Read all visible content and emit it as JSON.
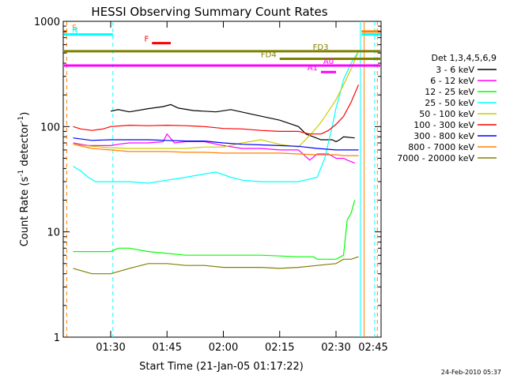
{
  "chart_data": {
    "type": "line",
    "title": "HESSI Observing Summary Count Rates",
    "xlabel": "Start Time (21-Jan-05 01:17:22)",
    "ylabel_pre": "Count Rate (s",
    "ylabel_exp": "-1",
    "ylabel_post": " detector",
    "ylabel_exp2": "-1",
    "ylabel_end": ")",
    "x_range_min": [
      77.37,
      162
    ],
    "ylim": [
      1,
      1000
    ],
    "yscale": "log",
    "x_ticks": [
      {
        "label": "01:30",
        "t": 90
      },
      {
        "label": "01:45",
        "t": 105
      },
      {
        "label": "02:00",
        "t": 120
      },
      {
        "label": "02:15",
        "t": 135
      },
      {
        "label": "02:30",
        "t": 150
      },
      {
        "label": "02:45",
        "t": 165
      }
    ],
    "y_ticks": [
      {
        "label": "1",
        "v": 1
      },
      {
        "label": "10",
        "v": 10
      },
      {
        "label": "100",
        "v": 100
      },
      {
        "label": "1000",
        "v": 1000
      }
    ],
    "legend_title": "Det 1,3,4,5,6,9",
    "legend_placement": "right",
    "series": [
      {
        "name": "3 - 6 keV",
        "color": "#000000",
        "x": [
          88,
          89,
          90,
          92,
          95,
          100,
          104,
          106,
          108,
          112,
          118,
          122,
          128,
          135,
          140,
          142,
          144,
          146,
          149,
          150,
          151,
          152,
          155
        ],
        "y": [
          null,
          null,
          140,
          145,
          138,
          148,
          155,
          162,
          150,
          142,
          138,
          145,
          130,
          115,
          100,
          85,
          80,
          75,
          75,
          72,
          75,
          80,
          78
        ]
      },
      {
        "name": "6 - 12 keV",
        "color": "#ff00ff",
        "x": [
          80,
          82,
          84,
          86,
          88,
          90,
          92,
          95,
          100,
          104,
          105,
          107,
          110,
          115,
          120,
          125,
          130,
          135,
          140,
          143,
          145,
          148,
          150,
          152,
          153,
          155
        ],
        "y": [
          70,
          68,
          66,
          66,
          66,
          66,
          68,
          70,
          70,
          72,
          85,
          70,
          72,
          72,
          66,
          62,
          62,
          60,
          60,
          48,
          55,
          55,
          50,
          50,
          48,
          45
        ]
      },
      {
        "name": "12 - 25 keV",
        "color": "#00ff00",
        "x": [
          80,
          85,
          90,
          92,
          95,
          100,
          110,
          120,
          130,
          140,
          144,
          145,
          150,
          152,
          153,
          154,
          155
        ],
        "y": [
          6.5,
          6.5,
          6.5,
          7,
          7,
          6.5,
          6,
          6,
          6,
          5.8,
          5.8,
          5.5,
          5.5,
          6,
          13,
          15,
          20
        ]
      },
      {
        "name": "25 - 50 keV",
        "color": "#00ffff",
        "x": [
          80,
          82,
          84,
          86,
          88,
          90,
          92,
          95,
          100,
          105,
          110,
          114,
          118,
          122,
          125,
          130,
          135,
          140,
          145,
          147,
          149,
          150,
          151,
          152,
          154,
          156
        ],
        "y": [
          42,
          38,
          33,
          30,
          30,
          30,
          30,
          30,
          29,
          31,
          33,
          35,
          37,
          33,
          31,
          30,
          30,
          30,
          33,
          50,
          100,
          150,
          200,
          280,
          400,
          520
        ]
      },
      {
        "name": "50 - 100 keV",
        "color": "#cccc00",
        "x": [
          80,
          85,
          90,
          95,
          100,
          105,
          110,
          115,
          120,
          125,
          130,
          135,
          140,
          144,
          146,
          148,
          150,
          152,
          154,
          156
        ],
        "y": [
          68,
          65,
          63,
          62,
          62,
          62,
          62,
          64,
          64,
          70,
          75,
          68,
          64,
          90,
          110,
          140,
          180,
          250,
          350,
          520
        ]
      },
      {
        "name": "100 - 300 keV",
        "color": "#ff0000",
        "x": [
          80,
          82,
          85,
          88,
          90,
          95,
          100,
          105,
          110,
          115,
          120,
          125,
          130,
          135,
          140,
          143,
          146,
          148,
          150,
          152,
          154,
          156
        ],
        "y": [
          100,
          95,
          92,
          95,
          100,
          103,
          102,
          103,
          102,
          100,
          96,
          95,
          92,
          90,
          90,
          85,
          85,
          92,
          105,
          125,
          170,
          250
        ]
      },
      {
        "name": "300 - 800 keV",
        "color": "#0000ff",
        "x": [
          80,
          85,
          90,
          95,
          100,
          105,
          110,
          115,
          120,
          125,
          130,
          135,
          140,
          145,
          150,
          152,
          154,
          156
        ],
        "y": [
          78,
          74,
          75,
          75,
          75,
          74,
          73,
          73,
          70,
          68,
          67,
          66,
          65,
          62,
          60,
          60,
          60,
          60
        ]
      },
      {
        "name": "800 - 7000 keV",
        "color": "#ff8000",
        "x": [
          80,
          85,
          90,
          95,
          100,
          105,
          110,
          115,
          120,
          125,
          130,
          135,
          140,
          145,
          150,
          152,
          154,
          156
        ],
        "y": [
          68,
          62,
          60,
          58,
          58,
          58,
          57,
          57,
          56,
          56,
          56,
          56,
          55,
          54,
          54,
          53,
          53,
          53
        ]
      },
      {
        "name": "7000 - 20000 keV",
        "color": "#808000",
        "x": [
          80,
          85,
          90,
          95,
          100,
          105,
          110,
          115,
          120,
          125,
          130,
          135,
          140,
          145,
          150,
          152,
          154,
          156
        ],
        "y": [
          4.5,
          4,
          4,
          4.5,
          5,
          5,
          4.8,
          4.8,
          4.6,
          4.6,
          4.6,
          4.5,
          4.6,
          4.8,
          5,
          5.5,
          5.5,
          5.8
        ]
      }
    ],
    "flag_bars": [
      {
        "label": "S",
        "color": "#ff8000",
        "level": 800,
        "t_start": 77.37,
        "t_end": 78.3,
        "right_start": 156.8,
        "right_end": 162
      },
      {
        "label": "N",
        "color": "#00ffff",
        "level": 750,
        "t_start": 77.37,
        "t_end": 90.6,
        "right_start": 156.8,
        "right_end": 162
      },
      {
        "label": "F",
        "color": "#ff0000",
        "level": 620,
        "t_start": 101,
        "t_end": 106
      },
      {
        "label": "FD3",
        "color": "#808000",
        "level": 520,
        "t_start": 77.37,
        "t_end": 162,
        "label_pos": "end-left"
      },
      {
        "label": "FD4",
        "color": "#808000",
        "level": 440,
        "t_start": 135,
        "t_end": 162
      },
      {
        "label": "A0",
        "color": "#ff00ff",
        "level": 380,
        "t_start": 77.37,
        "t_end": 162,
        "label_pos": "mid"
      },
      {
        "label": "A1",
        "color": "#ff00ff",
        "level": 330,
        "t_start": 146,
        "t_end": 150
      }
    ],
    "vertical_markers": [
      {
        "t": 78.3,
        "color": "#ff8000",
        "style": "dashed"
      },
      {
        "t": 90.6,
        "color": "#00ffff",
        "style": "dashed"
      },
      {
        "t": 156.5,
        "color": "#00ffff",
        "style": "solid"
      },
      {
        "t": 157.5,
        "color": "#ff8000",
        "style": "solid"
      },
      {
        "t": 160.3,
        "color": "#00ffff",
        "style": "dashed"
      },
      {
        "t": 161,
        "color": "#ff8000",
        "style": "dashed"
      }
    ]
  },
  "timestamp": "24-Feb-2010 05:37"
}
